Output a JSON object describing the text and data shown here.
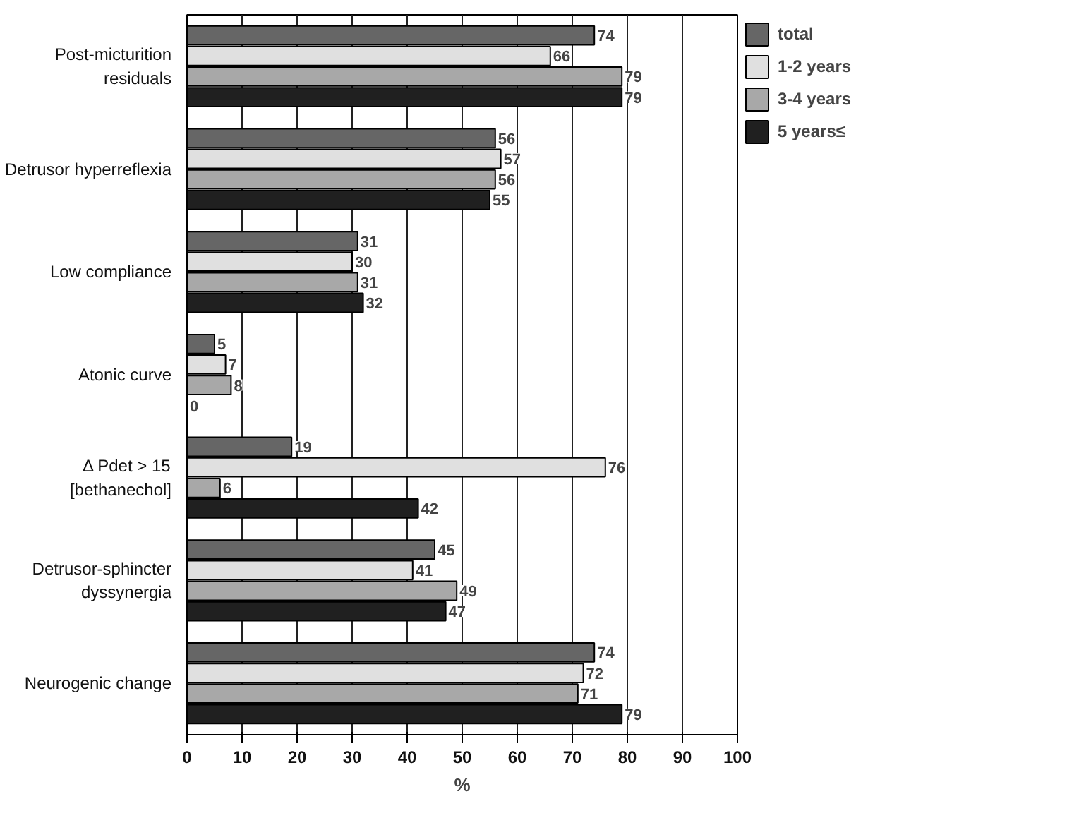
{
  "chart_data": {
    "type": "bar",
    "orientation": "horizontal",
    "xlabel": "%",
    "categories": [
      "Post-micturition\nresiduals",
      "Detrusor hyperreflexia",
      "Low compliance",
      "Atonic curve",
      "Δ Pdet > 15\n[bethanechol]",
      "Detrusor-sphincter\ndyssynergia",
      "Neurogenic change"
    ],
    "series": [
      {
        "name": "total",
        "color": "#666666",
        "values": [
          74,
          56,
          31,
          5,
          19,
          45,
          74
        ]
      },
      {
        "name": "1-2 years",
        "color": "#e0e0e0",
        "values": [
          66,
          57,
          30,
          7,
          76,
          41,
          72
        ]
      },
      {
        "name": "3-4 years",
        "color": "#a8a8a8",
        "values": [
          79,
          56,
          31,
          8,
          6,
          49,
          71
        ]
      },
      {
        "name": "5 years≤",
        "color": "#202020",
        "values": [
          79,
          55,
          32,
          0,
          42,
          47,
          79
        ]
      }
    ],
    "xlim": [
      0,
      100
    ],
    "xticks": [
      0,
      10,
      20,
      30,
      40,
      50,
      60,
      70,
      80,
      90,
      100
    ],
    "grid": "x",
    "legend": "top right",
    "data_labels": true
  }
}
